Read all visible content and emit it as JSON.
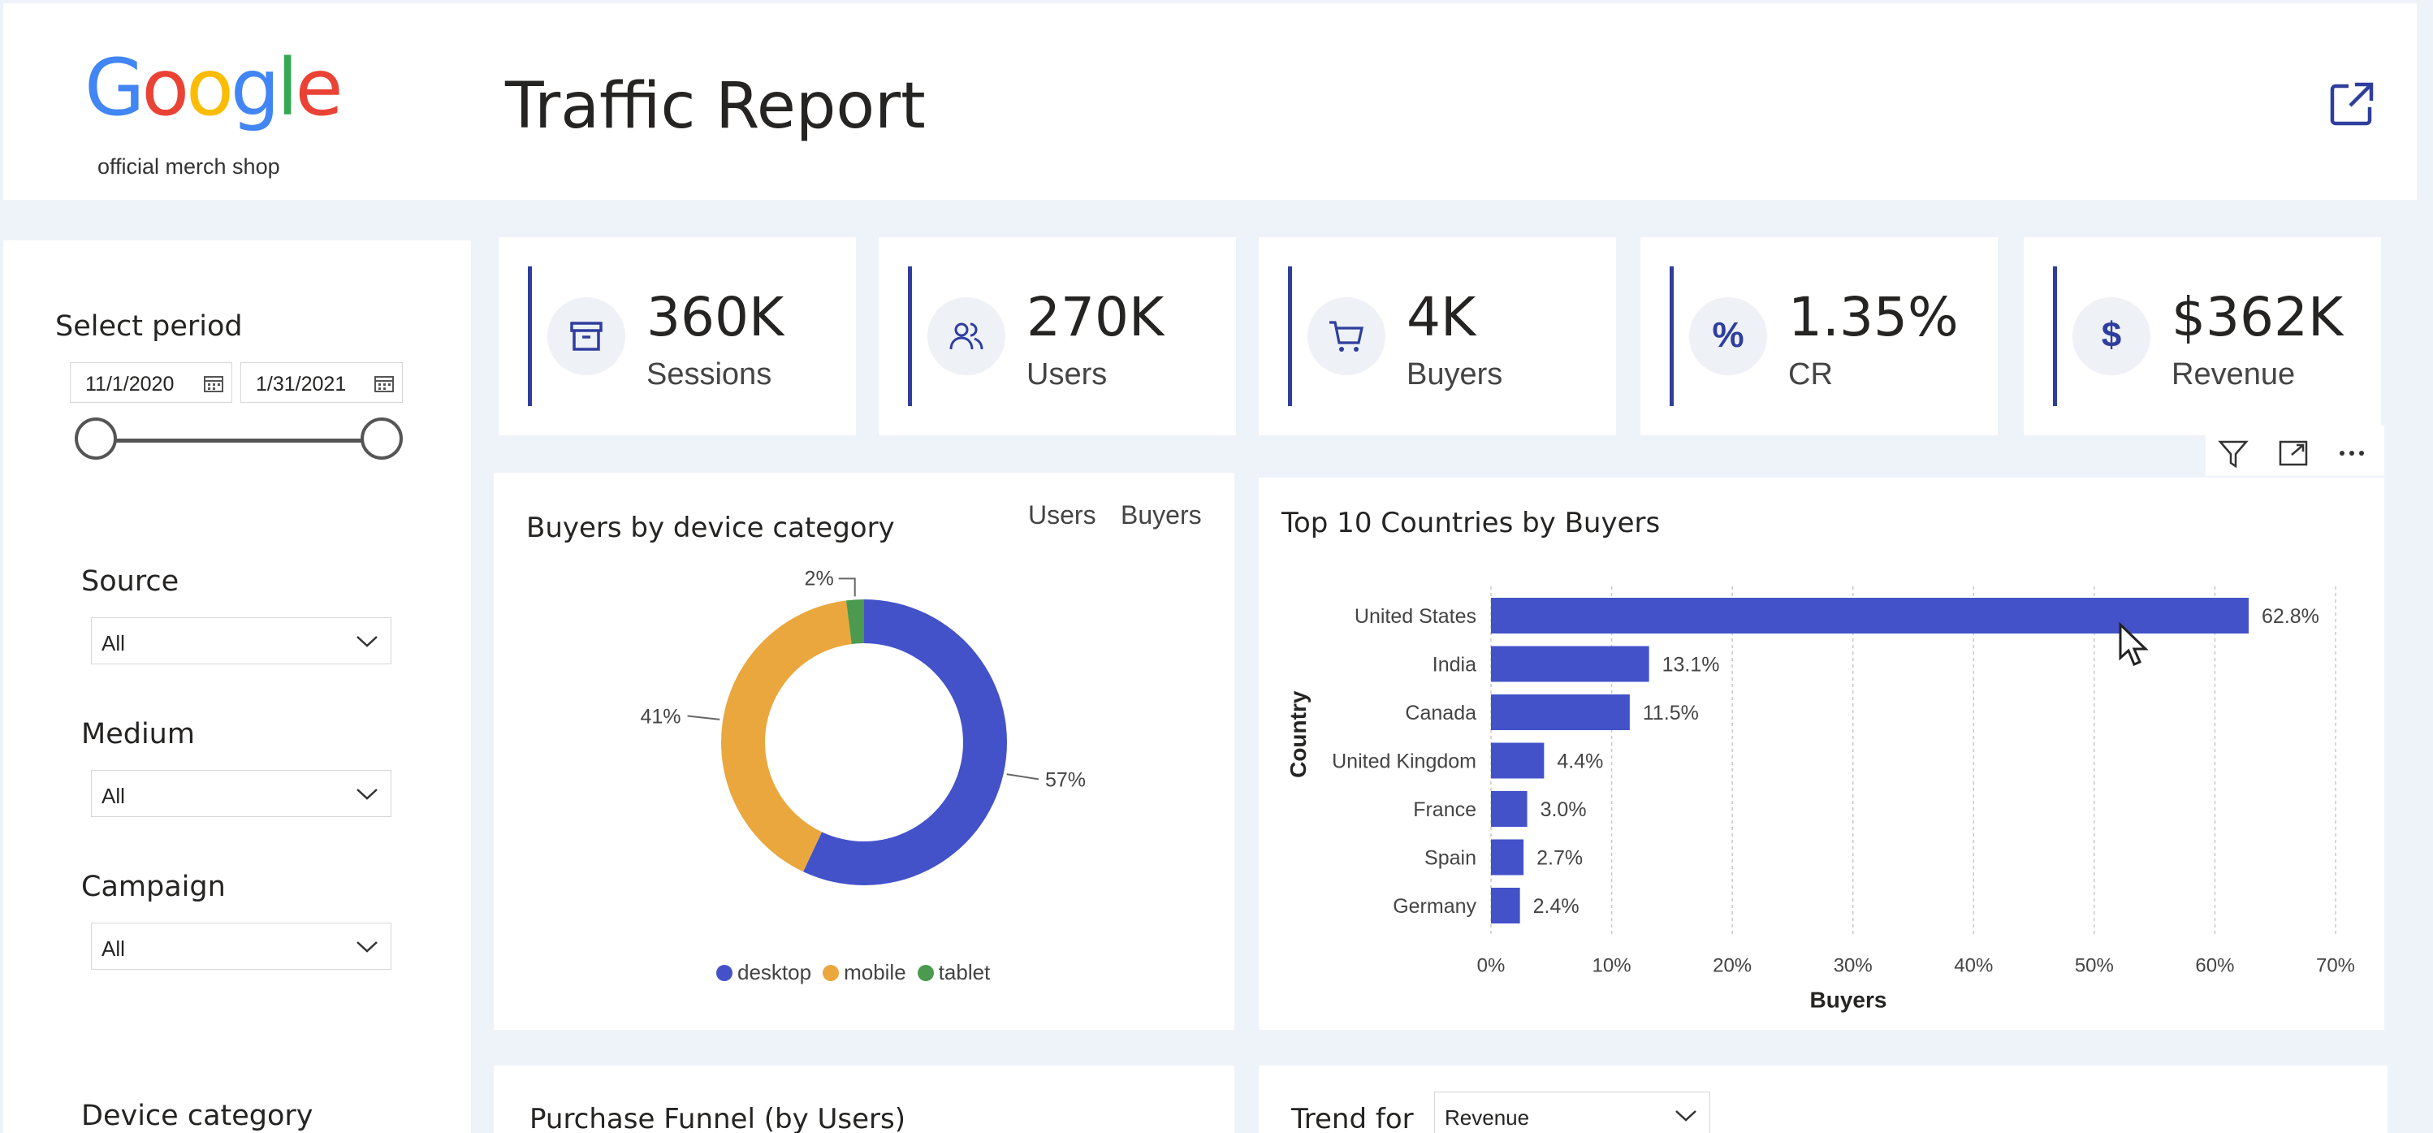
{
  "header": {
    "logo_text": "Google",
    "logo_subtitle": "official merch shop",
    "title": "Traffic Report"
  },
  "sidebar": {
    "period_label": "Select period",
    "start_date": "11/1/2020",
    "end_date": "1/31/2021",
    "source_label": "Source",
    "source_value": "All",
    "medium_label": "Medium",
    "medium_value": "All",
    "campaign_label": "Campaign",
    "campaign_value": "All",
    "device_label": "Device category"
  },
  "kpis": [
    {
      "value": "360K",
      "label": "Sessions",
      "icon": "archive-box-icon"
    },
    {
      "value": "270K",
      "label": "Users",
      "icon": "users-icon"
    },
    {
      "value": "4K",
      "label": "Buyers",
      "icon": "cart-icon"
    },
    {
      "value": "1.35%",
      "label": "CR",
      "icon": "percent-icon",
      "symbol": "%"
    },
    {
      "value": "$362K",
      "label": "Revenue",
      "icon": "dollar-icon",
      "symbol": "$"
    }
  ],
  "donut_card": {
    "title": "Buyers by device category",
    "toggle_users": "Users",
    "toggle_buyers": "Buyers"
  },
  "bar_card": {
    "title": "Top 10 Countries by Buyers"
  },
  "funnel_card": {
    "title": "Purchase Funnel (by Users)"
  },
  "trend_card": {
    "title": "Trend for",
    "select_value": "Revenue"
  },
  "colors": {
    "accent": "#2f3e9e",
    "bar": "#4352c9",
    "desktop": "#4352c9",
    "mobile": "#e9a73d",
    "tablet": "#4b9a4f"
  },
  "chart_data": [
    {
      "type": "pie",
      "title": "Buyers by device category",
      "categories": [
        "desktop",
        "mobile",
        "tablet"
      ],
      "values": [
        57,
        41,
        2
      ],
      "data_labels": [
        "57%",
        "41%",
        "2%"
      ],
      "legend": "bottom"
    },
    {
      "type": "bar",
      "orientation": "horizontal",
      "title": "Top 10 Countries by Buyers",
      "categories": [
        "United States",
        "India",
        "Canada",
        "United Kingdom",
        "France",
        "Spain",
        "Germany"
      ],
      "values": [
        62.8,
        13.1,
        11.5,
        4.4,
        3.0,
        2.7,
        2.4
      ],
      "data_labels": [
        "62.8%",
        "13.1%",
        "11.5%",
        "4.4%",
        "3.0%",
        "2.7%",
        "2.4%"
      ],
      "xlabel": "Buyers",
      "ylabel": "Country",
      "xlim": [
        0,
        70
      ],
      "x_ticks": [
        "0%",
        "10%",
        "20%",
        "30%",
        "40%",
        "50%",
        "60%",
        "70%"
      ],
      "grid": true
    }
  ]
}
